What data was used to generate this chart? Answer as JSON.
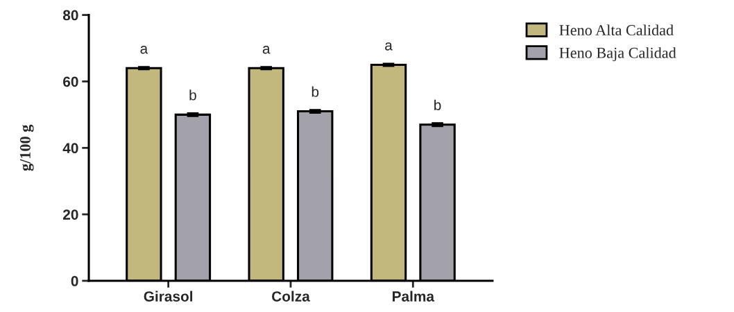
{
  "chart_data": {
    "type": "bar",
    "ylabel": "g/100 g",
    "categories": [
      "Girasol",
      "Colza",
      "Palma"
    ],
    "series": [
      {
        "name": "Heno Alta Calidad",
        "color": "#c2b77c",
        "values": [
          64,
          64,
          65
        ],
        "errors": [
          0.3,
          0.3,
          0.3
        ]
      },
      {
        "name": "Heno Baja Calidad",
        "color": "#a3a2aa",
        "values": [
          50,
          51,
          47
        ],
        "errors": [
          0.4,
          0.4,
          0.4
        ]
      }
    ],
    "ylim": [
      0,
      80
    ],
    "yticks": [
      0,
      20,
      40,
      60,
      80
    ],
    "grid": false,
    "legend": "top right",
    "annotations": [
      "a",
      "b",
      "a",
      "b",
      "a",
      "b"
    ]
  }
}
